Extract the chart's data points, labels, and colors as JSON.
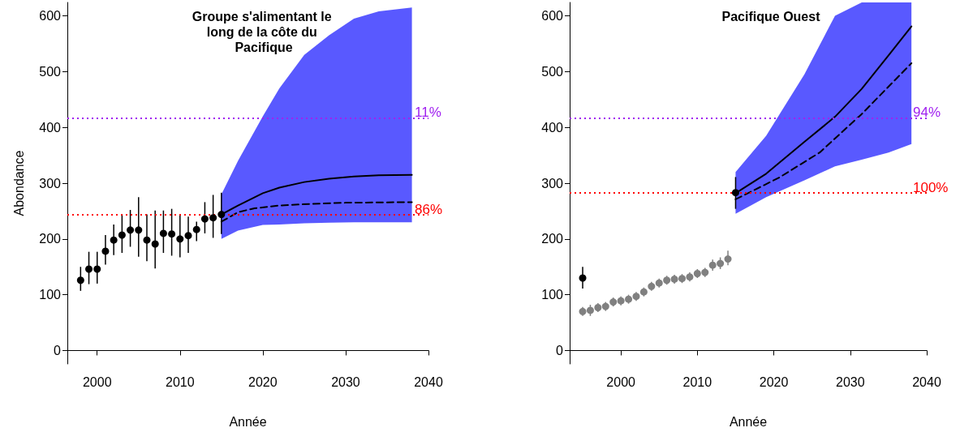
{
  "chart_data": [
    {
      "type": "line",
      "title": "Groupe s'alimentant le long de la côte du Pacifique",
      "xlabel": "Année",
      "ylabel": "Abondance",
      "xlim": [
        1996.4,
        2040
      ],
      "xticks": [
        2000,
        2010,
        2020,
        2030,
        2040
      ],
      "ylim": [
        -24,
        624
      ],
      "yticks": [
        0,
        100,
        200,
        300,
        400,
        500,
        600
      ],
      "grid": false,
      "series": [
        {
          "color": "#000000",
          "line_style": "solid",
          "marker": "none",
          "x": [
            2015,
            2017,
            2020,
            2022,
            2025,
            2028,
            2031,
            2034,
            2038
          ],
          "values": [
            244,
            260,
            282,
            292,
            302,
            308,
            312,
            314,
            315
          ],
          "lower": [
            200,
            215,
            225,
            226,
            228,
            229,
            230,
            230,
            230
          ],
          "upper": [
            280,
            340,
            420,
            470,
            530,
            565,
            595,
            608,
            615
          ]
        },
        {
          "color": "#000000",
          "line_style": "dashed",
          "marker": "none",
          "x": [
            2015,
            2017,
            2019,
            2022,
            2026,
            2030,
            2038
          ],
          "values": [
            231,
            248,
            255,
            260,
            263,
            265,
            266
          ]
        },
        {
          "type": "scatter",
          "color": "#000000",
          "marker": "circle",
          "x": [
            1998,
            1999,
            2000,
            2001,
            2002,
            2003,
            2004,
            2005,
            2006,
            2007,
            2008,
            2009,
            2010,
            2011,
            2012,
            2013,
            2014,
            2015
          ],
          "values": [
            126,
            146,
            146,
            178,
            198,
            207,
            216,
            216,
            198,
            191,
            210,
            209,
            200,
            206,
            217,
            236,
            238,
            244
          ],
          "errors": [
            [
              107,
              150
            ],
            [
              119,
              177
            ],
            [
              120,
              177
            ],
            [
              154,
              207
            ],
            [
              171,
              226
            ],
            [
              175,
              244
            ],
            [
              186,
              252
            ],
            [
              168,
              275
            ],
            [
              160,
              244
            ],
            [
              147,
              251
            ],
            [
              175,
              251
            ],
            [
              170,
              254
            ],
            [
              167,
              242
            ],
            [
              175,
              240
            ],
            [
              196,
              231
            ],
            [
              210,
              266
            ],
            [
              202,
              279
            ],
            [
              209,
              283
            ]
          ]
        }
      ],
      "ref_lines": [
        {
          "axis": "y",
          "value": 417,
          "color": "#a020f0",
          "line_style": "dotted"
        },
        {
          "axis": "y",
          "value": 244,
          "color": "#ff0000",
          "line_style": "dotted"
        }
      ],
      "annotations": [
        {
          "text": "11%",
          "y": 417
        },
        {
          "text": "86%",
          "y": 244
        }
      ]
    },
    {
      "type": "line",
      "title": "Pacifique Ouest",
      "xlabel": "Année",
      "xlim": [
        1993.3,
        2040
      ],
      "xticks": [
        2000,
        2010,
        2020,
        2030,
        2040
      ],
      "ylim": [
        -24,
        624
      ],
      "yticks": [
        0,
        100,
        200,
        300,
        400,
        500,
        600
      ],
      "grid": false,
      "series": [
        {
          "color": "#000000",
          "line_style": "solid",
          "marker": "none",
          "x": [
            2015,
            2019,
            2024,
            2028,
            2031.5,
            2035,
            2038
          ],
          "values": [
            282,
            317,
            374,
            419,
            469,
            529,
            581
          ],
          "lower": [
            245,
            275,
            305,
            330,
            342,
            355,
            370
          ],
          "upper": [
            320,
            385,
            495,
            600,
            624,
            624,
            624
          ]
        },
        {
          "color": "#000000",
          "line_style": "dashed",
          "marker": "none",
          "x": [
            2015,
            2020.7,
            2026,
            2031.5,
            2038
          ],
          "values": [
            271,
            310,
            355,
            424,
            515
          ]
        },
        {
          "type": "scatter",
          "color": "#808080",
          "marker": "circle",
          "x": [
            1995,
            1996,
            1997,
            1998,
            1999,
            2000,
            2001,
            2002,
            2003,
            2004,
            2005,
            2006,
            2007,
            2008,
            2009,
            2010,
            2011,
            2012,
            2013,
            2014
          ],
          "values": [
            70,
            72,
            77,
            79,
            87,
            89,
            92,
            97,
            105,
            115,
            121,
            126,
            128,
            129,
            132,
            138,
            140,
            153,
            156,
            164
          ],
          "errors": [
            [
              62,
              78
            ],
            [
              62,
              82
            ],
            [
              69,
              85
            ],
            [
              71,
              87
            ],
            [
              79,
              95
            ],
            [
              81,
              97
            ],
            [
              84,
              100
            ],
            [
              89,
              105
            ],
            [
              97,
              113
            ],
            [
              107,
              123
            ],
            [
              113,
              129
            ],
            [
              118,
              134
            ],
            [
              120,
              136
            ],
            [
              121,
              137
            ],
            [
              124,
              140
            ],
            [
              130,
              146
            ],
            [
              132,
              148
            ],
            [
              143,
              163
            ],
            [
              146,
              167
            ],
            [
              153,
              179
            ]
          ]
        },
        {
          "type": "scatter",
          "color": "#000000",
          "marker": "circle",
          "x": [
            1995,
            2015
          ],
          "values": [
            130,
            283
          ],
          "errors": [
            [
              111,
              150
            ],
            [
              254,
              311
            ]
          ]
        }
      ],
      "ref_lines": [
        {
          "axis": "y",
          "value": 417,
          "color": "#a020f0",
          "line_style": "dotted"
        },
        {
          "axis": "y",
          "value": 283,
          "color": "#ff0000",
          "line_style": "dotted"
        }
      ],
      "annotations": [
        {
          "text": "94%",
          "y": 417
        },
        {
          "text": "100%",
          "y": 283
        }
      ]
    }
  ]
}
